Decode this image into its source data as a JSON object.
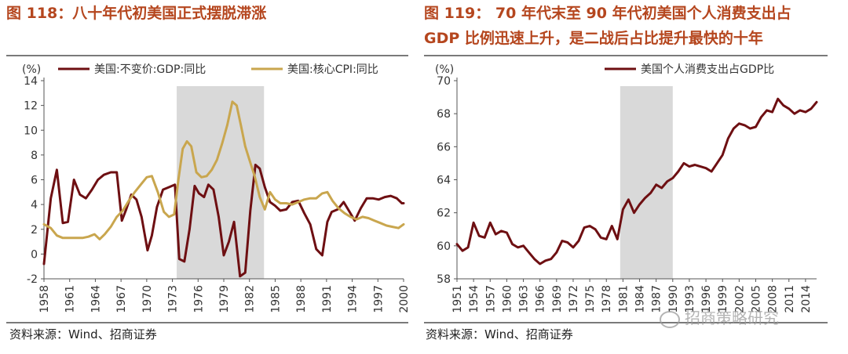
{
  "left_figure": {
    "title": "图 118：八十年代初美国正式摆脱滞涨",
    "source": "资料来源：Wind、招商证券"
  },
  "right_figure": {
    "title_line1": "图 119：  70 年代末至 90 年代初美国个人消费支出占",
    "title_line2": "GDP 比例迅速上升，是二战后占比提升最快的十年",
    "source": "资料来源：Wind、招商证券"
  },
  "watermark": "招商策略研究",
  "colors": {
    "dark_red": "#6e0f12",
    "gold": "#c9a64e",
    "shade": "#d9d9d9",
    "title": "#b5461e"
  },
  "chart_data": [
    {
      "type": "line",
      "ylabel": "(%)",
      "ylim": [
        -2,
        14
      ],
      "yticks": [
        -2,
        0,
        2,
        4,
        6,
        8,
        10,
        12,
        14
      ],
      "xlim": [
        1958,
        2000
      ],
      "xticks": [
        "1958",
        "1961",
        "1964",
        "1967",
        "1970",
        "1973",
        "1976",
        "1979",
        "1982",
        "1985",
        "1988",
        "1991",
        "1994",
        "1997",
        "2000"
      ],
      "shaded_region": [
        1973.5,
        1983.7
      ],
      "legend_position": "top",
      "series": [
        {
          "name": "美国:不变价:GDP:同比",
          "color": "#6e0f12",
          "x": [
            1958,
            1958.8,
            1959.5,
            1960.2,
            1960.8,
            1961.5,
            1962.2,
            1962.9,
            1963.6,
            1964.3,
            1965,
            1965.8,
            1966.5,
            1967.1,
            1967.6,
            1968.2,
            1968.8,
            1969.4,
            1970.1,
            1970.6,
            1971.2,
            1971.9,
            1972.6,
            1973.3,
            1973.8,
            1974.4,
            1975,
            1975.6,
            1976.1,
            1976.7,
            1977.2,
            1977.8,
            1978.4,
            1979,
            1979.6,
            1980.2,
            1980.9,
            1981.5,
            1982.1,
            1982.7,
            1983.2,
            1983.8,
            1984.4,
            1985,
            1985.6,
            1986.3,
            1987,
            1987.7,
            1988.4,
            1989.1,
            1989.8,
            1990.5,
            1991.1,
            1991.6,
            1992.3,
            1993,
            1993.7,
            1994.3,
            1995,
            1995.7,
            1996.4,
            1997.1,
            1997.8,
            1998.5,
            1999.2,
            1999.8,
            2000
          ],
          "y": [
            -0.8,
            4.5,
            6.8,
            2.5,
            2.6,
            6.0,
            4.8,
            4.5,
            5.2,
            6.0,
            6.4,
            6.6,
            6.6,
            2.7,
            3.6,
            4.8,
            4.4,
            3.0,
            0.3,
            1.5,
            3.8,
            5.2,
            5.4,
            5.6,
            -0.4,
            -0.6,
            2.0,
            5.5,
            4.9,
            4.6,
            5.6,
            5.2,
            3.0,
            -0.1,
            1.0,
            2.6,
            -1.8,
            -1.5,
            3.5,
            7.2,
            6.9,
            5.4,
            4.2,
            3.9,
            3.5,
            3.6,
            4.2,
            4.3,
            3.3,
            2.4,
            0.4,
            -0.1,
            2.6,
            3.4,
            3.6,
            4.2,
            3.4,
            2.7,
            3.7,
            4.5,
            4.5,
            4.4,
            4.6,
            4.7,
            4.5,
            4.1,
            4.1
          ]
        },
        {
          "name": "美国:核心CPI:同比",
          "color": "#c9a64e",
          "x": [
            1958,
            1958.8,
            1959.5,
            1960.2,
            1961,
            1961.8,
            1962.5,
            1963.2,
            1963.9,
            1964.5,
            1965.1,
            1965.8,
            1966.5,
            1967.2,
            1967.9,
            1968.6,
            1969.3,
            1970,
            1970.6,
            1971.3,
            1972,
            1972.6,
            1973.2,
            1973.7,
            1974.2,
            1974.7,
            1975.2,
            1975.8,
            1976.4,
            1977,
            1977.6,
            1978.2,
            1978.8,
            1979.4,
            1980,
            1980.5,
            1981,
            1981.5,
            1982,
            1982.6,
            1983.2,
            1983.8,
            1984.4,
            1985,
            1985.6,
            1986.3,
            1987,
            1987.7,
            1988.4,
            1989.1,
            1989.8,
            1990.5,
            1991.1,
            1991.7,
            1992.4,
            1993.1,
            1993.8,
            1994.5,
            1995.2,
            1995.9,
            1996.6,
            1997.3,
            1998,
            1998.7,
            1999.4,
            2000
          ],
          "y": [
            2.4,
            2.1,
            1.5,
            1.3,
            1.3,
            1.3,
            1.3,
            1.4,
            1.6,
            1.2,
            1.6,
            2.2,
            3.0,
            3.5,
            4.3,
            5.0,
            5.6,
            6.2,
            6.3,
            5.0,
            3.4,
            3.0,
            3.2,
            6.0,
            8.5,
            9.1,
            8.7,
            6.6,
            6.2,
            6.3,
            6.8,
            7.6,
            8.9,
            10.4,
            12.3,
            12.0,
            10.4,
            8.7,
            7.6,
            6.3,
            4.6,
            3.6,
            5.0,
            4.4,
            4.1,
            4.1,
            4.0,
            4.2,
            4.4,
            4.5,
            4.5,
            4.9,
            5.0,
            4.3,
            3.7,
            3.3,
            3.0,
            2.8,
            3.0,
            2.9,
            2.7,
            2.5,
            2.3,
            2.2,
            2.1,
            2.4
          ]
        }
      ]
    },
    {
      "type": "line",
      "ylabel": "(%)",
      "ylim": [
        58,
        70
      ],
      "yticks": [
        58,
        60,
        62,
        64,
        66,
        68,
        70
      ],
      "xlim": [
        1951,
        2016
      ],
      "xticks": [
        "1951",
        "1954",
        "1957",
        "1960",
        "1963",
        "1966",
        "1969",
        "1972",
        "1975",
        "1978",
        "1981",
        "1984",
        "1987",
        "1990",
        "1993",
        "1996",
        "1999",
        "2002",
        "2005",
        "2008",
        "2011",
        "2014"
      ],
      "shaded_region": [
        1980.5,
        1990
      ],
      "legend_position": "top-right",
      "series": [
        {
          "name": "美国个人消费支出占GDP比",
          "color": "#6e0f12",
          "x": [
            1951,
            1952,
            1953,
            1954,
            1955,
            1956,
            1957,
            1958,
            1959,
            1960,
            1961,
            1962,
            1963,
            1964,
            1965,
            1966,
            1967,
            1968,
            1969,
            1970,
            1971,
            1972,
            1973,
            1974,
            1975,
            1976,
            1977,
            1978,
            1979,
            1980,
            1981,
            1982,
            1983,
            1984,
            1985,
            1986,
            1987,
            1988,
            1989,
            1990,
            1991,
            1992,
            1993,
            1994,
            1995,
            1996,
            1997,
            1998,
            1999,
            2000,
            2001,
            2002,
            2003,
            2004,
            2005,
            2006,
            2007,
            2008,
            2009,
            2010,
            2011,
            2012,
            2013,
            2014,
            2015,
            2016
          ],
          "y": [
            60.1,
            59.7,
            59.9,
            61.4,
            60.6,
            60.5,
            61.4,
            60.7,
            60.9,
            60.8,
            60.1,
            59.9,
            60.0,
            59.6,
            59.2,
            58.9,
            59.1,
            59.2,
            59.6,
            60.3,
            60.2,
            59.9,
            60.3,
            61.1,
            61.2,
            61.0,
            60.5,
            60.4,
            61.2,
            60.4,
            62.2,
            62.8,
            62.0,
            62.5,
            62.9,
            63.2,
            63.7,
            63.5,
            63.9,
            64.1,
            64.5,
            65.0,
            64.8,
            64.9,
            64.8,
            64.7,
            64.5,
            65.0,
            65.5,
            66.5,
            67.1,
            67.4,
            67.3,
            67.1,
            67.2,
            67.8,
            68.2,
            68.1,
            68.9,
            68.5,
            68.3,
            68.0,
            68.2,
            68.1,
            68.3,
            68.7
          ]
        }
      ]
    }
  ]
}
